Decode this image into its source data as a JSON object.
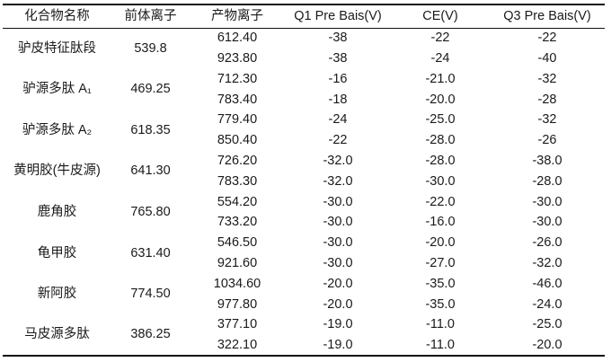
{
  "table": {
    "headers": [
      "化合物名称",
      "前体离子",
      "产物离子",
      "Q1 Pre Bais(V)",
      "CE(V)",
      "Q3 Pre Bais(V)"
    ],
    "groups": [
      {
        "compound": "驴皮特征肽段",
        "precursor": "539.8",
        "fragments": [
          {
            "product": "612.40",
            "q1": "-38",
            "ce": "-22",
            "q3": "-22"
          },
          {
            "product": "923.80",
            "q1": "-38",
            "ce": "-24",
            "q3": "-40"
          }
        ]
      },
      {
        "compound": "驴源多肽 A₁",
        "precursor": "469.25",
        "fragments": [
          {
            "product": "712.30",
            "q1": "-16",
            "ce": "-21.0",
            "q3": "-32"
          },
          {
            "product": "783.40",
            "q1": "-18",
            "ce": "-20.0",
            "q3": "-28"
          }
        ]
      },
      {
        "compound": "驴源多肽 A₂",
        "precursor": "618.35",
        "fragments": [
          {
            "product": "779.40",
            "q1": "-24",
            "ce": "-25.0",
            "q3": "-32"
          },
          {
            "product": "850.40",
            "q1": "-22",
            "ce": "-28.0",
            "q3": "-26"
          }
        ]
      },
      {
        "compound": "黄明胶(牛皮源)",
        "precursor": "641.30",
        "fragments": [
          {
            "product": "726.20",
            "q1": "-32.0",
            "ce": "-28.0",
            "q3": "-38.0"
          },
          {
            "product": "783.30",
            "q1": "-32.0",
            "ce": "-30.0",
            "q3": "-28.0"
          }
        ]
      },
      {
        "compound": "鹿角胶",
        "precursor": "765.80",
        "fragments": [
          {
            "product": "554.20",
            "q1": "-30.0",
            "ce": "-22.0",
            "q3": "-30.0"
          },
          {
            "product": "733.20",
            "q1": "-30.0",
            "ce": "-16.0",
            "q3": "-30.0"
          }
        ]
      },
      {
        "compound": "龟甲胶",
        "precursor": "631.40",
        "fragments": [
          {
            "product": "546.50",
            "q1": "-30.0",
            "ce": "-20.0",
            "q3": "-26.0"
          },
          {
            "product": "921.60",
            "q1": "-30.0",
            "ce": "-27.0",
            "q3": "-32.0"
          }
        ]
      },
      {
        "compound": "新阿胶",
        "precursor": "774.50",
        "fragments": [
          {
            "product": "1034.60",
            "q1": "-20.0",
            "ce": "-35.0",
            "q3": "-46.0"
          },
          {
            "product": "977.80",
            "q1": "-20.0",
            "ce": "-35.0",
            "q3": "-24.0"
          }
        ]
      },
      {
        "compound": "马皮源多肽",
        "precursor": "386.25",
        "fragments": [
          {
            "product": "377.10",
            "q1": "-19.0",
            "ce": "-11.0",
            "q3": "-25.0"
          },
          {
            "product": "322.10",
            "q1": "-19.0",
            "ce": "-11.0",
            "q3": "-20.0"
          }
        ]
      }
    ],
    "colors": {
      "text": "#1a1a1a",
      "line": "#101010",
      "background": "#ffffff"
    }
  }
}
